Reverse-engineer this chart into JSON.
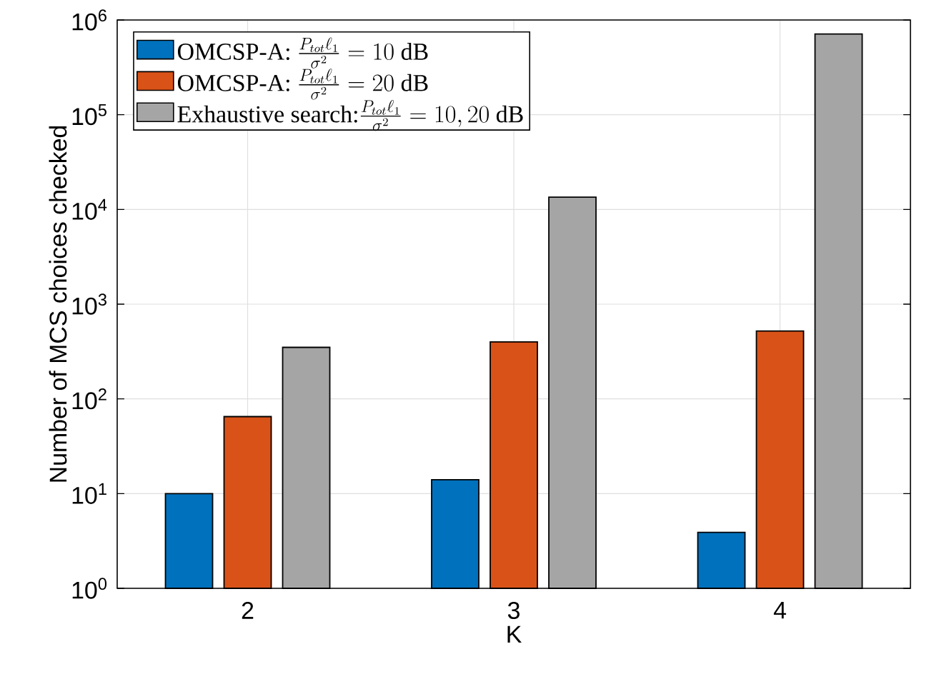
{
  "chart_data": {
    "type": "bar",
    "xlabel": "K",
    "ylabel": "Number of MCS choices checked",
    "categories": [
      "2",
      "3",
      "4"
    ],
    "series": [
      {
        "name": "\\text{OMCSP-A: }\\frac{P_{tot}\\ell_1}{\\sigma^2}=10\\text{ dB}",
        "color": "#0072bd",
        "values": [
          10,
          14,
          3.9
        ]
      },
      {
        "name": "\\text{OMCSP-A: }\\frac{P_{tot}\\ell_1}{\\sigma^2}=20\\text{ dB}",
        "color": "#d95319",
        "values": [
          65,
          400,
          520
        ]
      },
      {
        "name": "\\text{Exhaustive search:}\\frac{P_{tot}\\ell_1}{\\sigma^2}=10,20\\text{ dB}",
        "color": "#a5a5a5",
        "values": [
          350,
          13500,
          710000
        ]
      }
    ],
    "log": "y",
    "ylim": [
      1,
      1000000
    ],
    "yticks": [
      {
        "value": 1,
        "label": "10$^{0}$"
      },
      {
        "value": 10,
        "label": "10$^{1}$"
      },
      {
        "value": 100,
        "label": "10$^{2}$"
      },
      {
        "value": 1000,
        "label": "10$^{3}$"
      },
      {
        "value": 10000,
        "label": "10$^{4}$"
      },
      {
        "value": 100000,
        "label": "10$^{5}$"
      },
      {
        "value": 1000000,
        "label": "10$^{6}$"
      }
    ],
    "grid": true,
    "legend": "top left"
  }
}
